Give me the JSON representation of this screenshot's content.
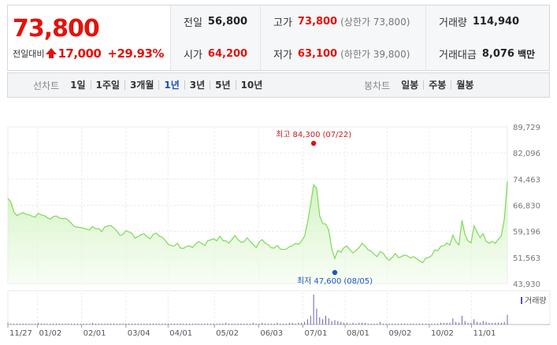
{
  "header": {
    "price": "73,800",
    "change_label": "전일대비",
    "change_abs": "17,000",
    "change_pct": "+29.93%",
    "stats": [
      {
        "label": "전일",
        "value": "56,800",
        "color": "normal",
        "sub": "",
        "unit": ""
      },
      {
        "label": "고가",
        "value": "73,800",
        "color": "red",
        "sub": "(상한가 73,800)",
        "unit": ""
      },
      {
        "label": "거래량",
        "value": "114,940",
        "color": "normal",
        "sub": "",
        "unit": ""
      },
      {
        "label": "시가",
        "value": "64,200",
        "color": "red",
        "sub": "",
        "unit": ""
      },
      {
        "label": "저가",
        "value": "63,100",
        "color": "red",
        "sub": "(하한가 39,800)",
        "unit": ""
      },
      {
        "label": "거래대금",
        "value": "8,076",
        "color": "normal",
        "sub": "",
        "unit": "백만"
      }
    ],
    "colors": {
      "up": "#e3120b",
      "down": "#1a56c4"
    }
  },
  "toolbar": {
    "line_label": "선차트",
    "line_periods": [
      "1일",
      "1주일",
      "3개월",
      "1년",
      "3년",
      "5년",
      "10년"
    ],
    "active_period": "1년",
    "candle_label": "봉차트",
    "candle_periods": [
      "일봉",
      "주봉",
      "월봉"
    ]
  },
  "chart_data": {
    "type": "area",
    "title": "",
    "xlabel": "",
    "ylabel": "",
    "ylim": [
      43930,
      89729
    ],
    "y_ticks": [
      "89,729",
      "82,096",
      "74,463",
      "66,830",
      "59,196",
      "51,563",
      "43,930"
    ],
    "x_ticks": [
      "11/27",
      "01/02",
      "02/01",
      "03/04",
      "04/01",
      "05/02",
      "06/03",
      "07/01",
      "08/01",
      "09/02",
      "10/02",
      "11/01"
    ],
    "grid": true,
    "line_color": "#7ed957",
    "fill_color": "#e6f9dc",
    "high_annotation": {
      "label": "최고",
      "value": "84,300",
      "date": "(07/22)",
      "index": 101
    },
    "low_annotation": {
      "label": "최저",
      "value": "47,600",
      "date": "(08/05)",
      "index": 108
    },
    "series": [
      {
        "values": [
          68800,
          67700,
          64800,
          63800,
          64300,
          64700,
          64200,
          64000,
          63600,
          63300,
          64500,
          64000,
          63800,
          63200,
          62800,
          63500,
          63700,
          63100,
          62900,
          63000,
          62400,
          61500,
          60600,
          60400,
          60300,
          60100,
          59800,
          59600,
          60600,
          59900,
          60000,
          59100,
          60500,
          60700,
          60900,
          60200,
          59300,
          58000,
          58300,
          59400,
          59000,
          58600,
          57200,
          57700,
          58200,
          58500,
          57600,
          57000,
          58300,
          58700,
          57800,
          57500,
          56500,
          55400,
          55000,
          54900,
          55700,
          54300,
          54200,
          54800,
          54900,
          54500,
          55500,
          56200,
          55700,
          55000,
          56400,
          56700,
          57000,
          56400,
          57800,
          56500,
          56400,
          55800,
          56800,
          58000,
          56800,
          56000,
          56100,
          57300,
          56300,
          55400,
          54500,
          56000,
          56800,
          55700,
          55300,
          54400,
          54300,
          55100,
          54000,
          53900,
          54000,
          54700,
          55000,
          55700,
          55400,
          56300,
          57800,
          61800,
          67000,
          72800,
          71800,
          63700,
          61500,
          61300,
          59500,
          54100,
          51300,
          53600,
          53100,
          54400,
          54900,
          53800,
          52900,
          53600,
          54400,
          55700,
          54900,
          53800,
          53400,
          52500,
          51800,
          53300,
          52800,
          51400,
          50700,
          51600,
          52700,
          51500,
          51800,
          52300,
          52000,
          51400,
          51800,
          51200,
          50600,
          50000,
          51300,
          51600,
          52100,
          53800,
          53500,
          54800,
          55000,
          55800,
          55200,
          58100,
          56200,
          55200,
          62400,
          58300,
          56400,
          55800,
          60800,
          58900,
          57400,
          58500,
          56200,
          55700,
          56300,
          55700,
          56900,
          57800,
          62900,
          73800
        ]
      }
    ],
    "volume": {
      "legend": "거래량",
      "values": [
        2,
        1,
        1,
        1,
        1,
        1,
        1,
        1,
        1,
        1,
        2,
        1,
        1,
        1,
        1,
        1,
        1,
        1,
        1,
        1,
        1,
        1,
        1,
        1,
        1,
        1,
        1,
        1,
        2,
        1,
        1,
        1,
        1,
        1,
        1,
        1,
        1,
        1,
        1,
        1,
        1,
        1,
        1,
        1,
        1,
        1,
        1,
        1,
        1,
        1,
        1,
        1,
        1,
        1,
        1,
        1,
        1,
        1,
        1,
        1,
        1,
        1,
        1,
        1,
        1,
        1,
        1,
        1,
        1,
        1,
        1,
        1,
        2,
        1,
        1,
        1,
        1,
        1,
        1,
        1,
        1,
        2,
        1,
        1,
        2,
        1,
        1,
        1,
        1,
        2,
        1,
        1,
        1,
        2,
        2,
        1,
        2,
        2,
        3,
        6,
        10,
        34,
        18,
        8,
        6,
        10,
        7,
        4,
        5,
        4,
        3,
        2,
        2,
        1,
        2,
        1,
        2,
        2,
        2,
        1,
        1,
        1,
        1,
        3,
        1,
        1,
        1,
        1,
        1,
        1,
        1,
        1,
        1,
        1,
        1,
        1,
        1,
        1,
        1,
        1,
        1,
        1,
        1,
        2,
        2,
        2,
        2,
        7,
        3,
        2,
        10,
        4,
        2,
        2,
        6,
        3,
        2,
        4,
        3,
        2,
        2,
        2,
        2,
        2,
        3,
        11
      ]
    }
  }
}
